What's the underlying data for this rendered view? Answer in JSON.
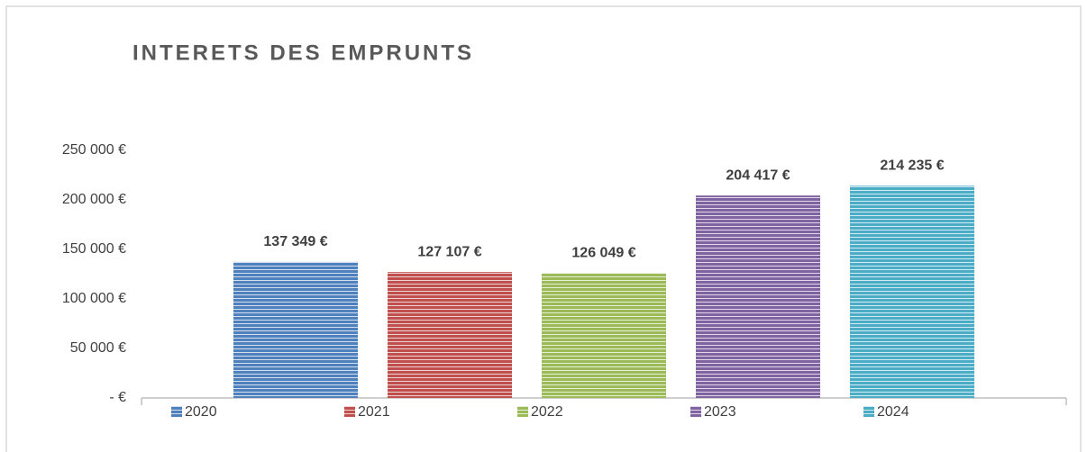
{
  "chart_data": {
    "type": "bar",
    "title": "INTERETS DES EMPRUNTS",
    "categories": [
      null
    ],
    "series": [
      {
        "name": "2020",
        "color": "#4f81bd",
        "values": [
          137349
        ],
        "value_labels": [
          "137 349 €"
        ]
      },
      {
        "name": "2021",
        "color": "#c0504d",
        "values": [
          127107
        ],
        "value_labels": [
          "127 107 €"
        ]
      },
      {
        "name": "2022",
        "color": "#9bbb59",
        "values": [
          126049
        ],
        "value_labels": [
          "126 049 €"
        ]
      },
      {
        "name": "2023",
        "color": "#8064a2",
        "values": [
          204417
        ],
        "value_labels": [
          "204 417 €"
        ]
      },
      {
        "name": "2024",
        "color": "#4bacc6",
        "values": [
          214235
        ],
        "value_labels": [
          "214 235 €"
        ]
      }
    ],
    "ylim": [
      0,
      250000
    ],
    "yticks": [
      {
        "value": 0,
        "label": "-   €"
      },
      {
        "value": 50000,
        "label": "50 000 €"
      },
      {
        "value": 100000,
        "label": "100 000 €"
      },
      {
        "value": 150000,
        "label": "150 000 €"
      },
      {
        "value": 200000,
        "label": "200 000 €"
      },
      {
        "value": 250000,
        "label": "250 000 €"
      }
    ],
    "grid": false,
    "legend": "bottom"
  }
}
